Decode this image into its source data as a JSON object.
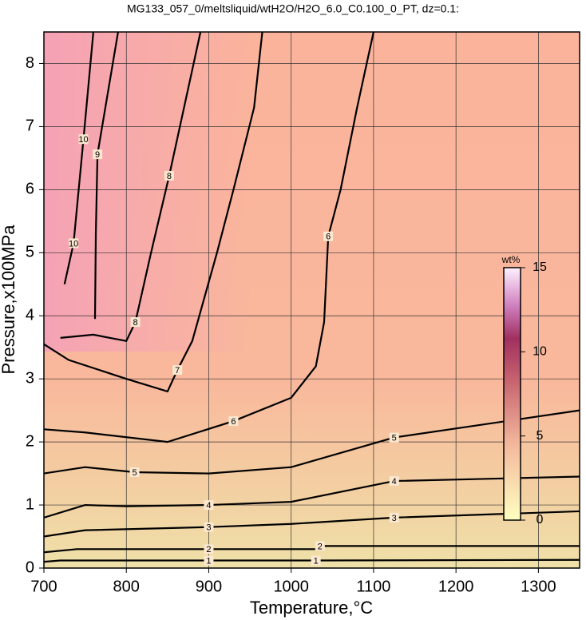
{
  "chart_data": {
    "type": "contour",
    "title": "MG133_057_0/meltsliquid/wtH2O/H2O_6.0_C0.100_0_PT, dz=0.1:",
    "x_label": "Temperature,°C",
    "y_label": "Pressure,x100MPa",
    "xlim": [
      700,
      1350
    ],
    "xticks": [
      700,
      800,
      900,
      1000,
      1100,
      1200,
      1300
    ],
    "ylim": [
      0,
      8.5
    ],
    "yticks": [
      0,
      1,
      2,
      3,
      4,
      5,
      6,
      7,
      8
    ],
    "grid": true,
    "colorbar": {
      "label": "wt%",
      "clim": [
        0,
        15
      ],
      "ticks": [
        0,
        5,
        10,
        15
      ]
    },
    "series": [
      {
        "level": 1,
        "x": [
          700,
          720,
          750,
          900,
          1030,
          1350
        ],
        "y": [
          0.1,
          0.12,
          0.12,
          0.12,
          0.12,
          0.13
        ]
      },
      {
        "level": 2,
        "x": [
          700,
          740,
          760,
          900,
          1030,
          1035,
          1350
        ],
        "y": [
          0.25,
          0.3,
          0.3,
          0.3,
          0.3,
          0.35,
          0.35
        ]
      },
      {
        "level": 3,
        "x": [
          700,
          750,
          900,
          1000,
          1125,
          1350
        ],
        "y": [
          0.5,
          0.6,
          0.65,
          0.7,
          0.8,
          0.9
        ]
      },
      {
        "level": 4,
        "x": [
          700,
          750,
          800,
          900,
          1000,
          1125,
          1350
        ],
        "y": [
          0.8,
          1.0,
          0.98,
          1.0,
          1.05,
          1.38,
          1.45
        ]
      },
      {
        "level": 5,
        "x": [
          700,
          750,
          810,
          900,
          1000,
          1125,
          1350
        ],
        "y": [
          1.5,
          1.6,
          1.52,
          1.5,
          1.6,
          2.07,
          2.5
        ]
      },
      {
        "level": 6,
        "x": [
          700,
          750,
          850,
          930,
          1000,
          1030,
          1040,
          1045,
          1060,
          1080,
          1100
        ],
        "y": [
          2.2,
          2.15,
          2.0,
          2.33,
          2.7,
          3.2,
          3.9,
          5.26,
          6.0,
          7.3,
          8.5
        ]
      },
      {
        "level": 7,
        "x": [
          700,
          730,
          800,
          850,
          862,
          880,
          910,
          930,
          955,
          965
        ],
        "y": [
          3.55,
          3.3,
          3.0,
          2.8,
          3.14,
          3.6,
          5.0,
          6.0,
          7.3,
          8.5
        ]
      },
      {
        "level": 8,
        "x": [
          720,
          760,
          800,
          811,
          830,
          852,
          870,
          890
        ],
        "y": [
          3.65,
          3.7,
          3.6,
          3.9,
          5.0,
          6.22,
          7.3,
          8.5
        ]
      },
      {
        "level": 9,
        "x": [
          762,
          763,
          765,
          790
        ],
        "y": [
          3.95,
          5.3,
          6.56,
          8.5
        ]
      },
      {
        "level": 10,
        "x": [
          725,
          736,
          748,
          760
        ],
        "y": [
          4.5,
          5.15,
          6.8,
          8.5
        ]
      }
    ]
  }
}
